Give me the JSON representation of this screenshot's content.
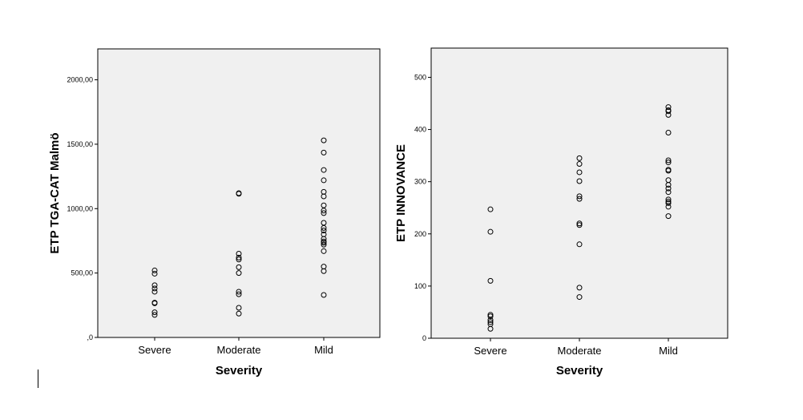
{
  "chart_data": [
    {
      "type": "scatter",
      "xlabel": "Severity",
      "ylabel": "ETP TGA-CAT Malmö",
      "categories": [
        "Severe",
        "Moderate",
        "Mild"
      ],
      "ylim": [
        0,
        2240
      ],
      "yticks": [
        0,
        500,
        1000,
        1500,
        2000
      ],
      "ytick_labels": [
        ",0",
        "500,00",
        "1000,00",
        "1500,00",
        "2000,00"
      ],
      "points": [
        {
          "x": "Severe",
          "y": 520
        },
        {
          "x": "Severe",
          "y": 495
        },
        {
          "x": "Severe",
          "y": 405
        },
        {
          "x": "Severe",
          "y": 380
        },
        {
          "x": "Severe",
          "y": 355
        },
        {
          "x": "Severe",
          "y": 270
        },
        {
          "x": "Severe",
          "y": 265
        },
        {
          "x": "Severe",
          "y": 195
        },
        {
          "x": "Severe",
          "y": 175
        },
        {
          "x": "Moderate",
          "y": 1120
        },
        {
          "x": "Moderate",
          "y": 1115
        },
        {
          "x": "Moderate",
          "y": 650
        },
        {
          "x": "Moderate",
          "y": 620
        },
        {
          "x": "Moderate",
          "y": 605
        },
        {
          "x": "Moderate",
          "y": 545
        },
        {
          "x": "Moderate",
          "y": 500
        },
        {
          "x": "Moderate",
          "y": 355
        },
        {
          "x": "Moderate",
          "y": 335
        },
        {
          "x": "Moderate",
          "y": 230
        },
        {
          "x": "Moderate",
          "y": 185
        },
        {
          "x": "Mild",
          "y": 1530
        },
        {
          "x": "Mild",
          "y": 1435
        },
        {
          "x": "Mild",
          "y": 1300
        },
        {
          "x": "Mild",
          "y": 1220
        },
        {
          "x": "Mild",
          "y": 1130
        },
        {
          "x": "Mild",
          "y": 1095
        },
        {
          "x": "Mild",
          "y": 1025
        },
        {
          "x": "Mild",
          "y": 985
        },
        {
          "x": "Mild",
          "y": 965
        },
        {
          "x": "Mild",
          "y": 890
        },
        {
          "x": "Mild",
          "y": 850
        },
        {
          "x": "Mild",
          "y": 830
        },
        {
          "x": "Mild",
          "y": 800
        },
        {
          "x": "Mild",
          "y": 765
        },
        {
          "x": "Mild",
          "y": 745
        },
        {
          "x": "Mild",
          "y": 735
        },
        {
          "x": "Mild",
          "y": 720
        },
        {
          "x": "Mild",
          "y": 670
        },
        {
          "x": "Mild",
          "y": 550
        },
        {
          "x": "Mild",
          "y": 515
        },
        {
          "x": "Mild",
          "y": 330
        }
      ]
    },
    {
      "type": "scatter",
      "xlabel": "Severity",
      "ylabel": "ETP INNOVANCE",
      "categories": [
        "Severe",
        "Moderate",
        "Mild"
      ],
      "ylim": [
        0,
        556
      ],
      "yticks": [
        0,
        100,
        200,
        300,
        400,
        500
      ],
      "ytick_labels": [
        "0",
        "100",
        "200",
        "300",
        "400",
        "500"
      ],
      "points": [
        {
          "x": "Severe",
          "y": 247
        },
        {
          "x": "Severe",
          "y": 204
        },
        {
          "x": "Severe",
          "y": 110
        },
        {
          "x": "Severe",
          "y": 45
        },
        {
          "x": "Severe",
          "y": 42
        },
        {
          "x": "Severe",
          "y": 35
        },
        {
          "x": "Severe",
          "y": 31
        },
        {
          "x": "Severe",
          "y": 27
        },
        {
          "x": "Severe",
          "y": 18
        },
        {
          "x": "Moderate",
          "y": 345
        },
        {
          "x": "Moderate",
          "y": 334
        },
        {
          "x": "Moderate",
          "y": 318
        },
        {
          "x": "Moderate",
          "y": 301
        },
        {
          "x": "Moderate",
          "y": 272
        },
        {
          "x": "Moderate",
          "y": 267
        },
        {
          "x": "Moderate",
          "y": 220
        },
        {
          "x": "Moderate",
          "y": 217
        },
        {
          "x": "Moderate",
          "y": 180
        },
        {
          "x": "Moderate",
          "y": 97
        },
        {
          "x": "Moderate",
          "y": 79
        },
        {
          "x": "Mild",
          "y": 443
        },
        {
          "x": "Mild",
          "y": 437
        },
        {
          "x": "Mild",
          "y": 435
        },
        {
          "x": "Mild",
          "y": 428
        },
        {
          "x": "Mild",
          "y": 394
        },
        {
          "x": "Mild",
          "y": 341
        },
        {
          "x": "Mild",
          "y": 337
        },
        {
          "x": "Mild",
          "y": 323
        },
        {
          "x": "Mild",
          "y": 321
        },
        {
          "x": "Mild",
          "y": 303
        },
        {
          "x": "Mild",
          "y": 294
        },
        {
          "x": "Mild",
          "y": 287
        },
        {
          "x": "Mild",
          "y": 280
        },
        {
          "x": "Mild",
          "y": 266
        },
        {
          "x": "Mild",
          "y": 262
        },
        {
          "x": "Mild",
          "y": 259
        },
        {
          "x": "Mild",
          "y": 252
        },
        {
          "x": "Mild",
          "y": 234
        }
      ]
    }
  ]
}
